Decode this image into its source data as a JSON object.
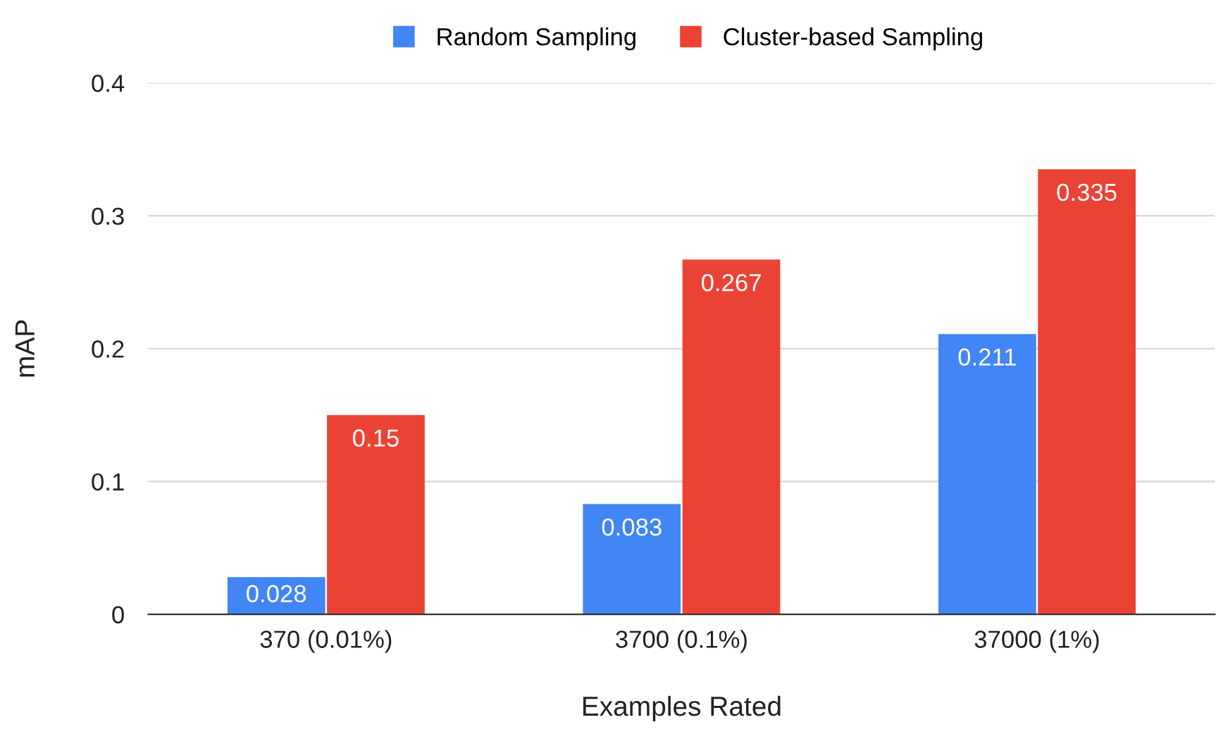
{
  "chart_data": {
    "type": "bar",
    "xlabel": "Examples Rated",
    "ylabel": "mAP",
    "categories": [
      "370 (0.01%)",
      "3700 (0.1%)",
      "37000 (1%)"
    ],
    "series": [
      {
        "name": "Random Sampling",
        "color": "#4285f4",
        "values": [
          0.028,
          0.083,
          0.211
        ]
      },
      {
        "name": "Cluster-based Sampling",
        "color": "#ea4335",
        "values": [
          0.15,
          0.267,
          0.335
        ]
      }
    ],
    "ylim": [
      0,
      0.4
    ],
    "yticks": [
      0,
      0.1,
      0.2,
      0.3,
      0.4
    ],
    "grid": "y",
    "legend": "top",
    "data_labels": true
  }
}
